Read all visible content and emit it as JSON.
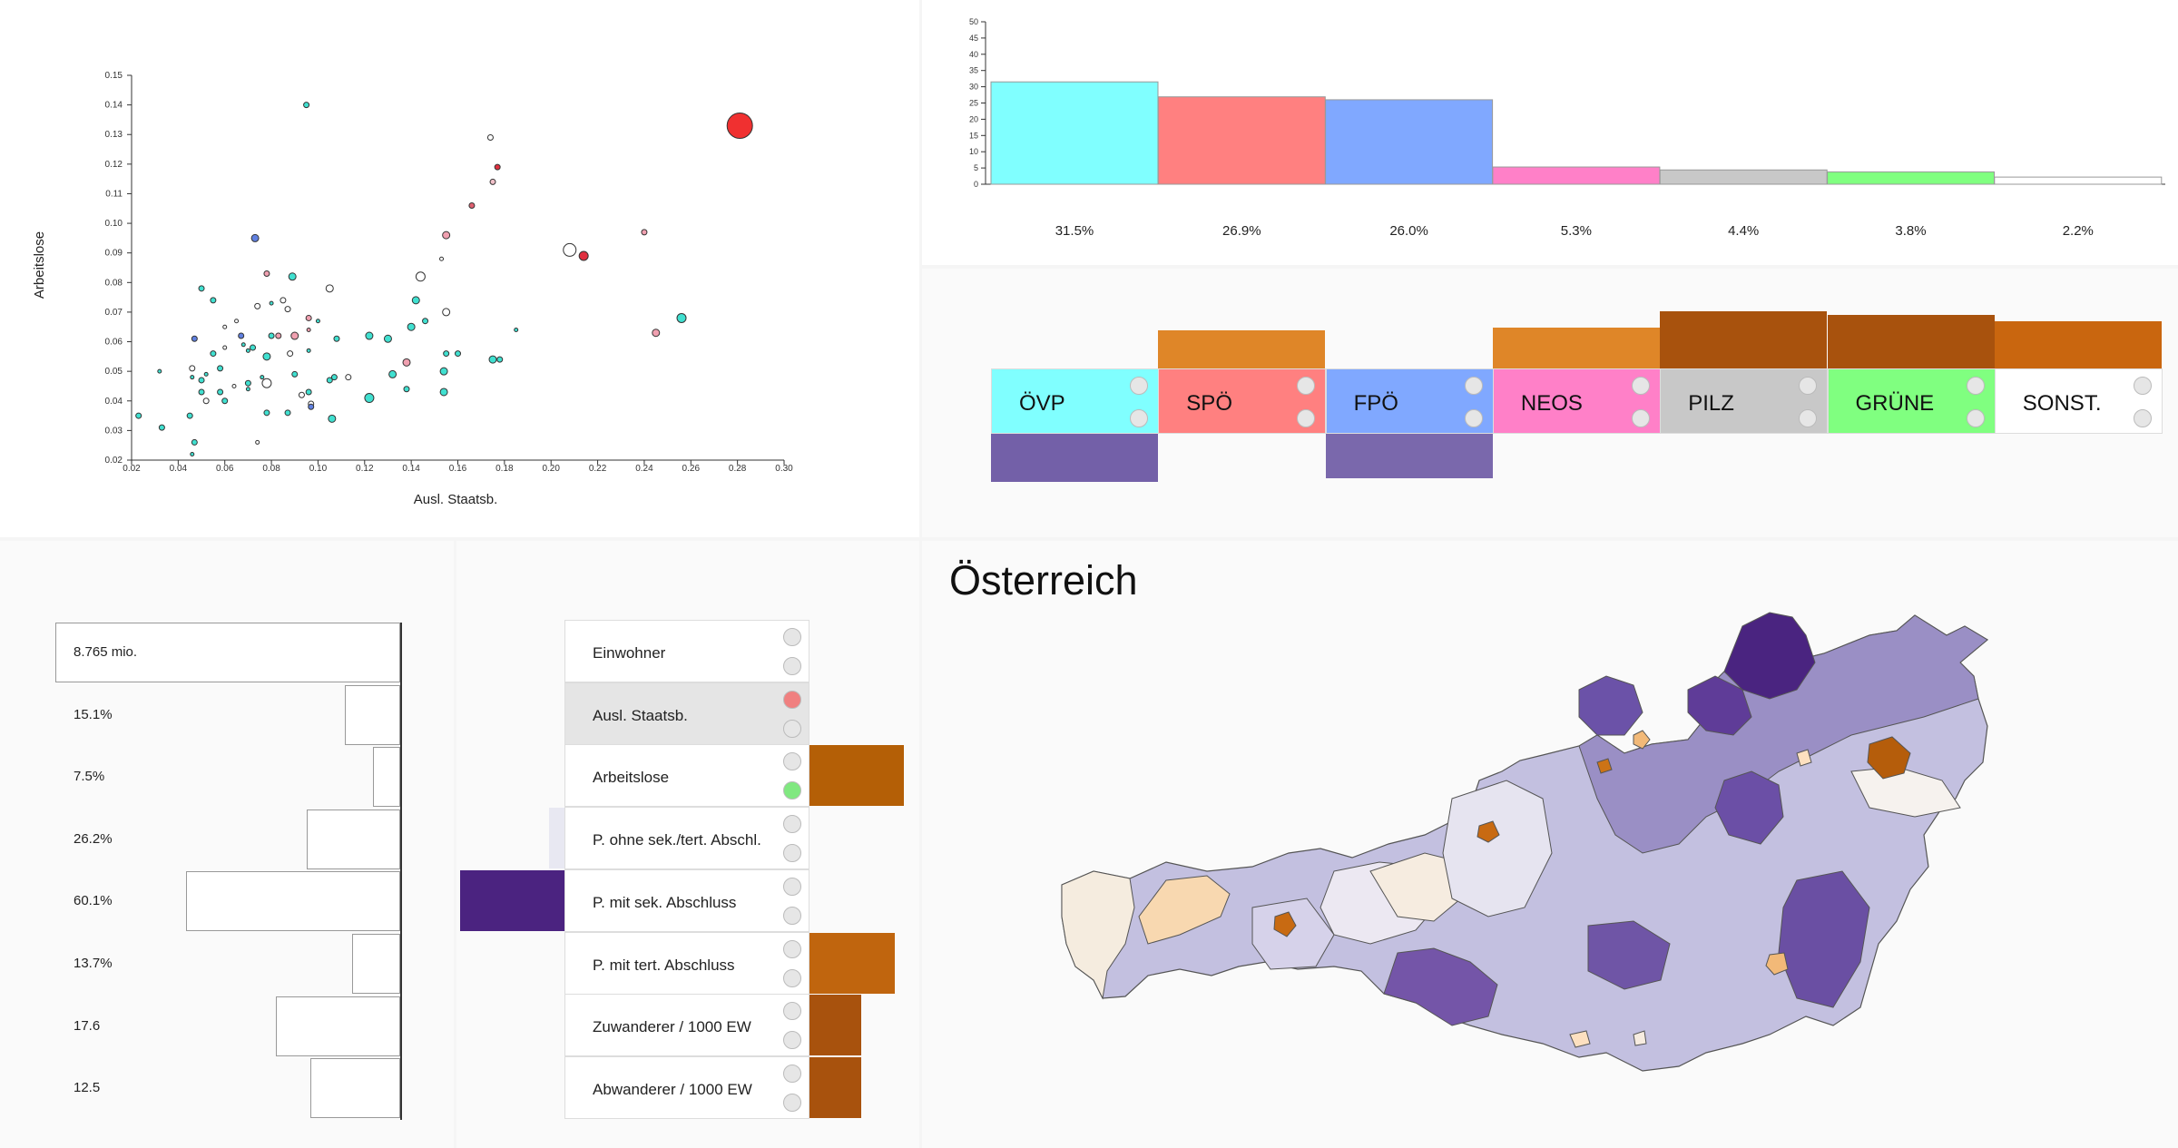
{
  "scatter": {
    "xlabel": "Ausl. Staatsb.",
    "ylabel": "Arbeitslose",
    "x_ticks": [
      "0.02",
      "0.04",
      "0.06",
      "0.08",
      "0.10",
      "0.12",
      "0.14",
      "0.16",
      "0.18",
      "0.20",
      "0.22",
      "0.24",
      "0.26",
      "0.28",
      "0.30"
    ],
    "y_ticks": [
      "0.02",
      "0.03",
      "0.04",
      "0.05",
      "0.06",
      "0.07",
      "0.08",
      "0.09",
      "0.10",
      "0.11",
      "0.12",
      "0.13",
      "0.14",
      "0.15"
    ]
  },
  "chart_data": {
    "type": "scatter",
    "xlabel": "Ausl. Staatsb.",
    "ylabel": "Arbeitslose",
    "xlim": [
      0.02,
      0.3
    ],
    "ylim": [
      0.02,
      0.15
    ],
    "points": [
      {
        "x": 0.281,
        "y": 0.133,
        "size": 14,
        "color": "#f03030"
      },
      {
        "x": 0.095,
        "y": 0.14,
        "size": 3,
        "color": "#40e0d0"
      },
      {
        "x": 0.174,
        "y": 0.129,
        "size": 3,
        "color": "#ffffff"
      },
      {
        "x": 0.177,
        "y": 0.119,
        "size": 3,
        "color": "#e03040"
      },
      {
        "x": 0.175,
        "y": 0.114,
        "size": 3,
        "color": "#f0c0c8"
      },
      {
        "x": 0.166,
        "y": 0.106,
        "size": 3,
        "color": "#e06070"
      },
      {
        "x": 0.073,
        "y": 0.095,
        "size": 4,
        "color": "#6080e0"
      },
      {
        "x": 0.155,
        "y": 0.096,
        "size": 4,
        "color": "#f0a0b0"
      },
      {
        "x": 0.208,
        "y": 0.091,
        "size": 7,
        "color": "#ffffff"
      },
      {
        "x": 0.214,
        "y": 0.089,
        "size": 5,
        "color": "#e03040"
      },
      {
        "x": 0.24,
        "y": 0.097,
        "size": 3,
        "color": "#f0a0b0"
      },
      {
        "x": 0.153,
        "y": 0.088,
        "size": 2,
        "color": "#ffffff"
      },
      {
        "x": 0.078,
        "y": 0.083,
        "size": 3,
        "color": "#f0a0b0"
      },
      {
        "x": 0.089,
        "y": 0.082,
        "size": 4,
        "color": "#40e0d0"
      },
      {
        "x": 0.144,
        "y": 0.082,
        "size": 5,
        "color": "#ffffff"
      },
      {
        "x": 0.05,
        "y": 0.078,
        "size": 3,
        "color": "#40e0d0"
      },
      {
        "x": 0.105,
        "y": 0.078,
        "size": 4,
        "color": "#ffffff"
      },
      {
        "x": 0.055,
        "y": 0.074,
        "size": 3,
        "color": "#40e0d0"
      },
      {
        "x": 0.085,
        "y": 0.074,
        "size": 3,
        "color": "#ffffff"
      },
      {
        "x": 0.142,
        "y": 0.074,
        "size": 4,
        "color": "#40e0d0"
      },
      {
        "x": 0.074,
        "y": 0.072,
        "size": 3,
        "color": "#ffffff"
      },
      {
        "x": 0.08,
        "y": 0.073,
        "size": 2,
        "color": "#40e0d0"
      },
      {
        "x": 0.087,
        "y": 0.071,
        "size": 3,
        "color": "#ffffff"
      },
      {
        "x": 0.155,
        "y": 0.07,
        "size": 4,
        "color": "#ffffff"
      },
      {
        "x": 0.065,
        "y": 0.067,
        "size": 2,
        "color": "#ffffff"
      },
      {
        "x": 0.096,
        "y": 0.068,
        "size": 3,
        "color": "#f0a0b0"
      },
      {
        "x": 0.1,
        "y": 0.067,
        "size": 2,
        "color": "#40e0d0"
      },
      {
        "x": 0.256,
        "y": 0.068,
        "size": 5,
        "color": "#40e0d0"
      },
      {
        "x": 0.14,
        "y": 0.065,
        "size": 4,
        "color": "#40e0d0"
      },
      {
        "x": 0.146,
        "y": 0.067,
        "size": 3,
        "color": "#40e0d0"
      },
      {
        "x": 0.06,
        "y": 0.065,
        "size": 2,
        "color": "#ffffff"
      },
      {
        "x": 0.067,
        "y": 0.062,
        "size": 3,
        "color": "#6080e0"
      },
      {
        "x": 0.08,
        "y": 0.062,
        "size": 3,
        "color": "#40e0d0"
      },
      {
        "x": 0.083,
        "y": 0.062,
        "size": 3,
        "color": "#f0a0b0"
      },
      {
        "x": 0.09,
        "y": 0.062,
        "size": 4,
        "color": "#f0a0b0"
      },
      {
        "x": 0.096,
        "y": 0.064,
        "size": 2,
        "color": "#f0a0b0"
      },
      {
        "x": 0.108,
        "y": 0.061,
        "size": 3,
        "color": "#40e0d0"
      },
      {
        "x": 0.122,
        "y": 0.062,
        "size": 4,
        "color": "#40e0d0"
      },
      {
        "x": 0.13,
        "y": 0.061,
        "size": 4,
        "color": "#40e0d0"
      },
      {
        "x": 0.245,
        "y": 0.063,
        "size": 4,
        "color": "#f0a0b0"
      },
      {
        "x": 0.185,
        "y": 0.064,
        "size": 2,
        "color": "#40e0d0"
      },
      {
        "x": 0.047,
        "y": 0.061,
        "size": 3,
        "color": "#6080e0"
      },
      {
        "x": 0.055,
        "y": 0.056,
        "size": 3,
        "color": "#40e0d0"
      },
      {
        "x": 0.06,
        "y": 0.058,
        "size": 2,
        "color": "#ffffff"
      },
      {
        "x": 0.068,
        "y": 0.059,
        "size": 2,
        "color": "#40e0d0"
      },
      {
        "x": 0.072,
        "y": 0.058,
        "size": 3,
        "color": "#40e0d0"
      },
      {
        "x": 0.07,
        "y": 0.057,
        "size": 2,
        "color": "#40e0d0"
      },
      {
        "x": 0.078,
        "y": 0.055,
        "size": 4,
        "color": "#40e0d0"
      },
      {
        "x": 0.088,
        "y": 0.056,
        "size": 3,
        "color": "#ffffff"
      },
      {
        "x": 0.096,
        "y": 0.057,
        "size": 2,
        "color": "#40e0d0"
      },
      {
        "x": 0.155,
        "y": 0.056,
        "size": 3,
        "color": "#40e0d0"
      },
      {
        "x": 0.16,
        "y": 0.056,
        "size": 3,
        "color": "#40e0d0"
      },
      {
        "x": 0.138,
        "y": 0.053,
        "size": 4,
        "color": "#f0a0b0"
      },
      {
        "x": 0.175,
        "y": 0.054,
        "size": 4,
        "color": "#40e0d0"
      },
      {
        "x": 0.178,
        "y": 0.054,
        "size": 3,
        "color": "#40e0d0"
      },
      {
        "x": 0.032,
        "y": 0.05,
        "size": 2,
        "color": "#40e0d0"
      },
      {
        "x": 0.046,
        "y": 0.051,
        "size": 3,
        "color": "#ffffff"
      },
      {
        "x": 0.046,
        "y": 0.048,
        "size": 2,
        "color": "#40e0d0"
      },
      {
        "x": 0.05,
        "y": 0.047,
        "size": 3,
        "color": "#40e0d0"
      },
      {
        "x": 0.052,
        "y": 0.049,
        "size": 2,
        "color": "#40e0d0"
      },
      {
        "x": 0.058,
        "y": 0.051,
        "size": 3,
        "color": "#40e0d0"
      },
      {
        "x": 0.07,
        "y": 0.046,
        "size": 3,
        "color": "#40e0d0"
      },
      {
        "x": 0.076,
        "y": 0.048,
        "size": 2,
        "color": "#40e0d0"
      },
      {
        "x": 0.078,
        "y": 0.046,
        "size": 5,
        "color": "#ffffff"
      },
      {
        "x": 0.09,
        "y": 0.049,
        "size": 3,
        "color": "#40e0d0"
      },
      {
        "x": 0.105,
        "y": 0.047,
        "size": 3,
        "color": "#40e0d0"
      },
      {
        "x": 0.107,
        "y": 0.048,
        "size": 3,
        "color": "#40e0d0"
      },
      {
        "x": 0.113,
        "y": 0.048,
        "size": 3,
        "color": "#ffffff"
      },
      {
        "x": 0.132,
        "y": 0.049,
        "size": 4,
        "color": "#40e0d0"
      },
      {
        "x": 0.154,
        "y": 0.05,
        "size": 4,
        "color": "#40e0d0"
      },
      {
        "x": 0.05,
        "y": 0.043,
        "size": 3,
        "color": "#40e0d0"
      },
      {
        "x": 0.052,
        "y": 0.04,
        "size": 3,
        "color": "#ffffff"
      },
      {
        "x": 0.058,
        "y": 0.043,
        "size": 3,
        "color": "#40e0d0"
      },
      {
        "x": 0.06,
        "y": 0.04,
        "size": 3,
        "color": "#40e0d0"
      },
      {
        "x": 0.064,
        "y": 0.045,
        "size": 2,
        "color": "#ffffff"
      },
      {
        "x": 0.07,
        "y": 0.044,
        "size": 2,
        "color": "#40e0d0"
      },
      {
        "x": 0.093,
        "y": 0.042,
        "size": 3,
        "color": "#ffffff"
      },
      {
        "x": 0.096,
        "y": 0.043,
        "size": 3,
        "color": "#40e0d0"
      },
      {
        "x": 0.122,
        "y": 0.041,
        "size": 5,
        "color": "#40e0d0"
      },
      {
        "x": 0.138,
        "y": 0.044,
        "size": 3,
        "color": "#40e0d0"
      },
      {
        "x": 0.154,
        "y": 0.043,
        "size": 4,
        "color": "#40e0d0"
      },
      {
        "x": 0.023,
        "y": 0.035,
        "size": 3,
        "color": "#40e0d0"
      },
      {
        "x": 0.045,
        "y": 0.035,
        "size": 3,
        "color": "#40e0d0"
      },
      {
        "x": 0.078,
        "y": 0.036,
        "size": 3,
        "color": "#40e0d0"
      },
      {
        "x": 0.087,
        "y": 0.036,
        "size": 3,
        "color": "#40e0d0"
      },
      {
        "x": 0.097,
        "y": 0.039,
        "size": 3,
        "color": "#ffffff"
      },
      {
        "x": 0.097,
        "y": 0.038,
        "size": 3,
        "color": "#6080e0"
      },
      {
        "x": 0.106,
        "y": 0.034,
        "size": 4,
        "color": "#40e0d0"
      },
      {
        "x": 0.033,
        "y": 0.031,
        "size": 3,
        "color": "#40e0d0"
      },
      {
        "x": 0.047,
        "y": 0.026,
        "size": 3,
        "color": "#40e0d0"
      },
      {
        "x": 0.074,
        "y": 0.026,
        "size": 2,
        "color": "#ffffff"
      },
      {
        "x": 0.046,
        "y": 0.022,
        "size": 2,
        "color": "#40e0d0"
      }
    ]
  },
  "results": {
    "y_ticks": [
      "50",
      "45",
      "40",
      "35",
      "30",
      "25",
      "20",
      "15",
      "10",
      "5",
      "0"
    ],
    "bars": [
      {
        "label": "31.5%",
        "value": 31.5,
        "color": "#80ffff"
      },
      {
        "label": "26.9%",
        "value": 26.9,
        "color": "#ff8080"
      },
      {
        "label": "26.0%",
        "value": 26.0,
        "color": "#80a8ff"
      },
      {
        "label": "5.3%",
        "value": 5.3,
        "color": "#ff80c8"
      },
      {
        "label": "4.4%",
        "value": 4.4,
        "color": "#c8c8c8"
      },
      {
        "label": "3.8%",
        "value": 3.8,
        "color": "#80ff80"
      },
      {
        "label": "2.2%",
        "value": 2.2,
        "color": "#ffffff"
      }
    ]
  },
  "parties": [
    {
      "name": "ÖVP",
      "color": "#80ffff",
      "change": -0.75,
      "change_color": "#7360a8"
    },
    {
      "name": "SPÖ",
      "color": "#ff8080",
      "change": 0.6,
      "change_color": "#df8628"
    },
    {
      "name": "FPÖ",
      "color": "#80a8ff",
      "change": -0.7,
      "change_color": "#7a68ac"
    },
    {
      "name": "NEOS",
      "color": "#ff80c8",
      "change": 0.65,
      "change_color": "#df8628"
    },
    {
      "name": "PILZ",
      "color": "#c8c8c8",
      "change": 0.9,
      "change_color": "#a8520d"
    },
    {
      "name": "GRÜNE",
      "color": "#80ff80",
      "change": 0.85,
      "change_color": "#a8520d"
    },
    {
      "name": "SONST.",
      "color": "#ffffff",
      "change": 0.75,
      "change_color": "#c9660f"
    }
  ],
  "profile": {
    "rows": [
      {
        "label": "8.765 mio.",
        "value": 1.0
      },
      {
        "label": "15.1%",
        "value": 0.16
      },
      {
        "label": "7.5%",
        "value": 0.08
      },
      {
        "label": "26.2%",
        "value": 0.27
      },
      {
        "label": "60.1%",
        "value": 0.62
      },
      {
        "label": "13.7%",
        "value": 0.14
      },
      {
        "label": "17.6",
        "value": 0.36
      },
      {
        "label": "12.5",
        "value": 0.26
      }
    ]
  },
  "attributes": [
    {
      "label": "Einwohner",
      "selected": false,
      "r1": "#e6e6e6",
      "r2": "#e6e6e6",
      "dev": 0,
      "dev_color": "#ffffff"
    },
    {
      "label": "Ausl. Staatsb.",
      "selected": true,
      "r1": "#f08080",
      "r2": "#e6e6e6",
      "dev": 0,
      "dev_color": "#ffffff"
    },
    {
      "label": "Arbeitslose",
      "selected": false,
      "r1": "#e6e6e6",
      "r2": "#80e880",
      "dev": 0.56,
      "dev_color": "#b45f06"
    },
    {
      "label": "P. ohne sek./tert. Abschl.",
      "selected": false,
      "r1": "#e6e6e6",
      "r2": "#e6e6e6",
      "dev": -0.09,
      "dev_color": "#e8e8f2"
    },
    {
      "label": "P. mit sek. Abschluss",
      "selected": false,
      "r1": "#e6e6e6",
      "r2": "#e6e6e6",
      "dev": -0.62,
      "dev_color": "#4b2380"
    },
    {
      "label": "P. mit tert. Abschluss",
      "selected": false,
      "r1": "#e6e6e6",
      "r2": "#e6e6e6",
      "dev": 0.51,
      "dev_color": "#c0650e"
    },
    {
      "label": "Zuwanderer / 1000 EW",
      "selected": false,
      "r1": "#e6e6e6",
      "r2": "#e6e6e6",
      "dev": 0.31,
      "dev_color": "#a8520d"
    },
    {
      "label": "Abwanderer / 1000 EW",
      "selected": false,
      "r1": "#e6e6e6",
      "r2": "#e6e6e6",
      "dev": 0.31,
      "dev_color": "#a8520d"
    }
  ],
  "map": {
    "title": "Österreich"
  }
}
